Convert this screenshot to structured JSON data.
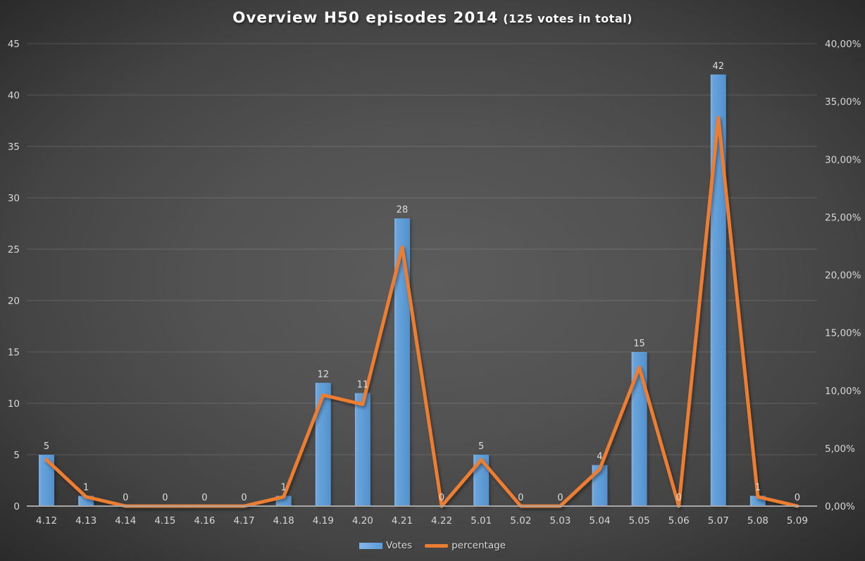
{
  "chart_data": {
    "type": "combo",
    "title": "Overview H50 episodes 2014",
    "subtitle": "(125 votes in total)",
    "total_votes": 125,
    "categories": [
      "4.12",
      "4.13",
      "4.14",
      "4.15",
      "4.16",
      "4.17",
      "4.18",
      "4.19",
      "4.20",
      "4.21",
      "4.22",
      "5.01",
      "5.02",
      "5.03",
      "5.04",
      "5.05",
      "5.06",
      "5.07",
      "5.08",
      "5.09"
    ],
    "series": [
      {
        "name": "Votes",
        "type": "bar",
        "axis": "left",
        "color": "#5B9BD5",
        "values": [
          5,
          1,
          0,
          0,
          0,
          0,
          1,
          12,
          11,
          28,
          0,
          5,
          0,
          0,
          4,
          15,
          0,
          42,
          1,
          0
        ],
        "value_labels": [
          "5",
          "1",
          "0",
          "0",
          "0",
          "0",
          "1",
          "12",
          "11",
          "28",
          "0",
          "5",
          "0",
          "0",
          "4",
          "15",
          "0",
          "42",
          "1",
          "0"
        ]
      },
      {
        "name": "percentage",
        "type": "line",
        "axis": "right",
        "color": "#ED7D31",
        "values": [
          4.0,
          0.8,
          0,
          0,
          0,
          0,
          0.8,
          9.6,
          8.8,
          22.4,
          0,
          4.0,
          0,
          0,
          3.2,
          12.0,
          0,
          33.6,
          0.8,
          0
        ]
      }
    ],
    "left_axis": {
      "min": 0,
      "max": 45,
      "step": 5,
      "tick_labels": [
        "45",
        "40",
        "35",
        "30",
        "25",
        "20",
        "15",
        "10",
        "5",
        "0"
      ]
    },
    "right_axis": {
      "min": 0,
      "max": 40,
      "step": 5,
      "tick_labels": [
        "40,00%",
        "35,00%",
        "30,00%",
        "25,00%",
        "20,00%",
        "15,00%",
        "10,00%",
        "5,00%",
        "0,00%"
      ]
    },
    "grid": true,
    "legend": {
      "position": "bottom",
      "items": [
        {
          "label": "Votes",
          "swatch": "bar"
        },
        {
          "label": "percentage",
          "swatch": "line"
        }
      ]
    }
  },
  "colors": {
    "bar": "#5B9BD5",
    "bar_highlight": "#84B6E7",
    "line": "#ED7D31",
    "grid": "rgba(255,255,255,0.14)",
    "baseline": "#a6a6a6",
    "axis_text": "#d6d6d6",
    "value_label_text": "#dcdcdc",
    "title_text": "#ffffff"
  }
}
